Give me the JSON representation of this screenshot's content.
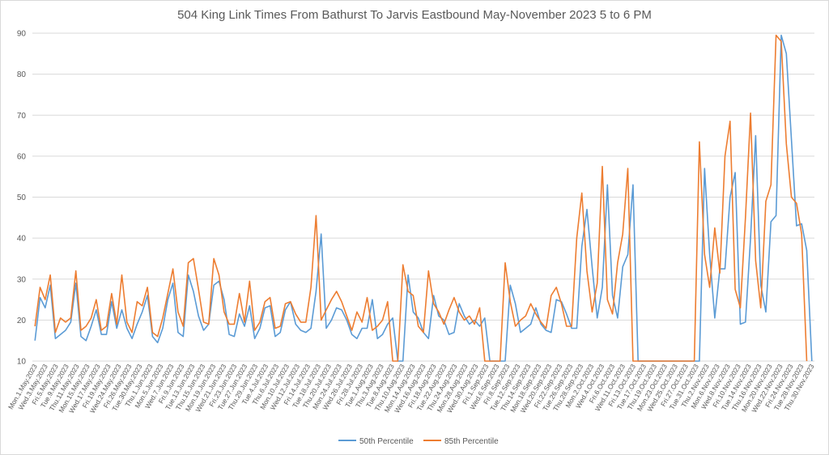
{
  "chart_data": {
    "type": "line",
    "title": "504 King Link Times From Bathurst To Jarvis Eastbound May-November 2023 5 to 6 PM",
    "xlabel": "",
    "ylabel": "",
    "ylim": [
      10,
      90
    ],
    "yticks": [
      10,
      20,
      30,
      40,
      50,
      60,
      70,
      80,
      90
    ],
    "grid": true,
    "legend_position": "bottom",
    "x_tick_labels": [
      "Mon.1.May.2023",
      "Wed.3.May.2023",
      "Fri.5.May.2023",
      "Tue.9.May.2023",
      "Thu.11.May.2023",
      "Mon.15.May.2023",
      "Wed.17.May.2023",
      "Fri.19.May.2023",
      "Wed.24.May.2023",
      "Fri.26.May.2023",
      "Tue.30.May.2023",
      "Thu.1.Jun.2023",
      "Mon.5.Jun.2023",
      "Wed.7.Jun.2023",
      "Fri.9.Jun.2023",
      "Tue.13.Jun.2023",
      "Thu.15.Jun.2023",
      "Mon.19.Jun.2023",
      "Wed.21.Jun.2023",
      "Fri.23.Jun.2023",
      "Tue.27.Jun.2023",
      "Thu.29.Jun.2023",
      "Tue.4.Jul.2023",
      "Thu.6.Jul.2023",
      "Mon.10.Jul.2023",
      "Wed.12.Jul.2023",
      "Fri.14.Jul.2023",
      "Tue.18.Jul.2023",
      "Thu.20.Jul.2023",
      "Mon.24.Jul.2023",
      "Wed.26.Jul.2023",
      "Fri.28.Jul.2023",
      "Tue.1.Aug.2023",
      "Thu.3.Aug.2023",
      "Tue.8.Aug.2023",
      "Thu.10.Aug.2023",
      "Mon.14.Aug.2023",
      "Wed.16.Aug.2023",
      "Fri.18.Aug.2023",
      "Tue.22.Aug.2023",
      "Thu.24.Aug.2023",
      "Mon.28.Aug.2023",
      "Wed.30.Aug.2023",
      "Fri.1.Sep.2023",
      "Wed.6.Sep.2023",
      "Fri.8.Sep.2023",
      "Tue.12.Sep.2023",
      "Thu.14.Sep.2023",
      "Mon.18.Sep.2023",
      "Wed.20.Sep.2023",
      "Fri.22.Sep.2023",
      "Tue.26.Sep.2023",
      "Thu.28.Sep.2023",
      "Mon.2.Oct.2023",
      "Wed.4.Oct.2023",
      "Fri.6.Oct.2023",
      "Wed.11.Oct.2023",
      "Fri.13.Oct.2023",
      "Tue.17.Oct.2023",
      "Thu.19.Oct.2023",
      "Mon.23.Oct.2023",
      "Wed.25.Oct.2023",
      "Fri.27.Oct.2023",
      "Tue.31.Oct.2023",
      "Thu.2.Nov.2023",
      "Mon.6.Nov.2023",
      "Wed.8.Nov.2023",
      "Fri.10.Nov.2023",
      "Tue.14.Nov.2023",
      "Thu.16.Nov.2023",
      "Mon.20.Nov.2023",
      "Wed.22.Nov.2023",
      "Fri.24.Nov.2023",
      "Tue.28.Nov.2023",
      "Thu.30.Nov.2023"
    ],
    "series": [
      {
        "name": "50th Percentile",
        "color": "#5b9bd5",
        "values": [
          15,
          25.5,
          23,
          28.5,
          15.5,
          16.5,
          17.5,
          19.5,
          29,
          16,
          15,
          18.5,
          22.5,
          16.5,
          16.5,
          24.5,
          18,
          22.5,
          18,
          15.5,
          19,
          22,
          26,
          16,
          14.5,
          18,
          25,
          29,
          17,
          16,
          31,
          27,
          21,
          17.5,
          19,
          28.5,
          29.5,
          25,
          16.5,
          16,
          21.5,
          18.5,
          23.5,
          15.5,
          18,
          23,
          23.5,
          16,
          17,
          22.5,
          24.5,
          19,
          17.5,
          17,
          18,
          27,
          41,
          18,
          20,
          23,
          22.5,
          20,
          16.5,
          15.5,
          18,
          18,
          25,
          15.5,
          16.5,
          19,
          20.5,
          10,
          10,
          31,
          22,
          20.5,
          17,
          15.5,
          26,
          21,
          20,
          16.5,
          17,
          24,
          21,
          19,
          20,
          18.5,
          20.5,
          10,
          10,
          10,
          10,
          28.5,
          24,
          17,
          18,
          19,
          23,
          19,
          17.5,
          17,
          25,
          24.5,
          21.5,
          18,
          18,
          38,
          47,
          33,
          20.5,
          28,
          53,
          26,
          20.5,
          33,
          36,
          53,
          10,
          10,
          10,
          10,
          10,
          10,
          10,
          10,
          10,
          10,
          10,
          10,
          10,
          57,
          36,
          20.5,
          32.5,
          32.5,
          50,
          56,
          19,
          19.5,
          40,
          65,
          28.5,
          22,
          44,
          45.5,
          89.5,
          85,
          64,
          43,
          43.5,
          37,
          10
        ],
        "dash": false
      },
      {
        "name": "85th Percentile",
        "color": "#ed7d31",
        "values": [
          18.5,
          28,
          25,
          31,
          17,
          20.5,
          19.5,
          20.5,
          32,
          17.5,
          18.5,
          20.5,
          25,
          17.5,
          18.5,
          26.5,
          19,
          31,
          19.5,
          17,
          24.5,
          23.5,
          28,
          17,
          16,
          20.5,
          26.5,
          32.5,
          22,
          18.5,
          34,
          35,
          27.5,
          19.5,
          19,
          35,
          31,
          22,
          19,
          19,
          26.5,
          19.5,
          29.5,
          17.5,
          19.5,
          24.5,
          25.5,
          18,
          18.5,
          24,
          24.5,
          21.5,
          19.5,
          19.5,
          28,
          45.5,
          20,
          22.5,
          25,
          27,
          24.5,
          21,
          17.5,
          22,
          19.5,
          25.5,
          17.5,
          18.5,
          20,
          24.5,
          10,
          10,
          33.5,
          27,
          26,
          18.5,
          17,
          32,
          24,
          22,
          19,
          22.5,
          25.5,
          22,
          20,
          21,
          19,
          23,
          10,
          10,
          10,
          10,
          34,
          24.5,
          18.5,
          20,
          21,
          24,
          21.5,
          19.5,
          18,
          26,
          28,
          24,
          18.5,
          18.5,
          40,
          51,
          32,
          22,
          29,
          57.5,
          25,
          21.5,
          34,
          41,
          57,
          10,
          10,
          10,
          10,
          10,
          10,
          10,
          10,
          10,
          10,
          10,
          10,
          10,
          63.5,
          36,
          28,
          42.5,
          31.5,
          60,
          68.5,
          27.5,
          23,
          45,
          70.5,
          34.5,
          23,
          49,
          53,
          89.5,
          88,
          63,
          50,
          48.5,
          41,
          10
        ]
      }
    ]
  }
}
